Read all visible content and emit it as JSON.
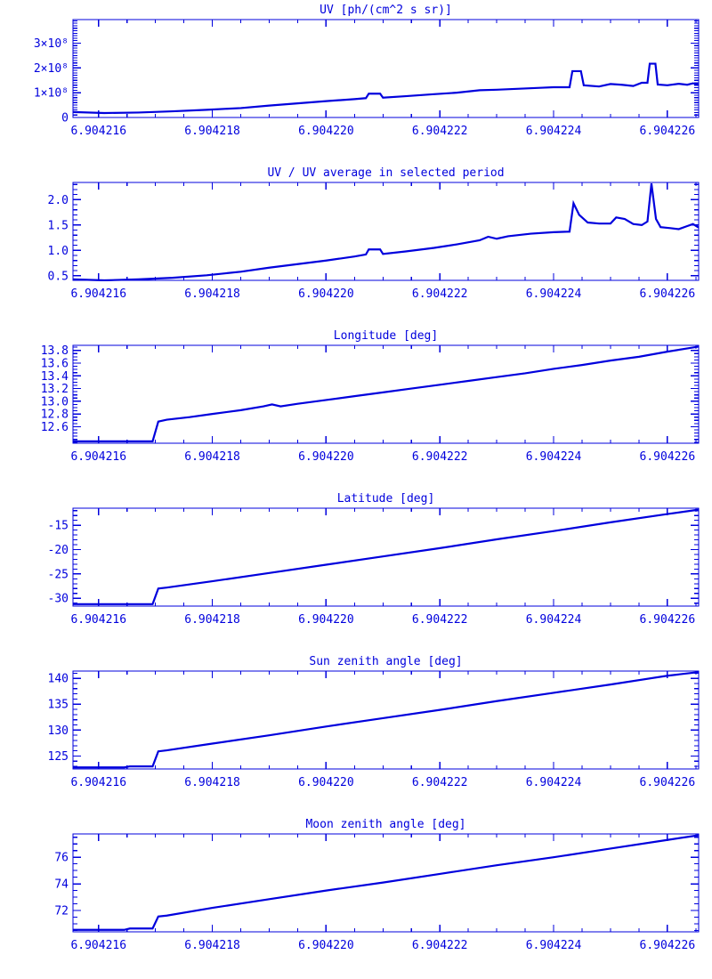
{
  "page": {
    "background": "#ffffff",
    "accent": "#0000dd"
  },
  "chart_data": [
    {
      "type": "line",
      "title": "UV [ph/(cm^2 s sr)]",
      "xlabel": "",
      "ylabel": "",
      "xlim": [
        6.90421555,
        6.90422655
      ],
      "ylim": [
        0,
        395000000.0
      ],
      "x_minor_step": 5e-07,
      "y_minor_step": 10000000.0,
      "x_ticks": {
        "values": [
          6.904216,
          6.904218,
          6.90422,
          6.904222,
          6.904224,
          6.904226
        ],
        "labels": [
          "6.904216",
          "6.904218",
          "6.904220",
          "6.904222",
          "6.904224",
          "6.904226"
        ]
      },
      "y_ticks": {
        "values": [
          0,
          100000000.0,
          200000000.0,
          300000000.0
        ],
        "labels": [
          "0",
          "1×10⁸",
          "2×10⁸",
          "3×10⁸"
        ]
      },
      "points": [
        [
          6.90421555,
          22000000.0
        ],
        [
          6.9042161,
          18000000.0
        ],
        [
          6.9042167,
          20000000.0
        ],
        [
          6.9042173,
          25000000.0
        ],
        [
          6.9042179,
          31000000.0
        ],
        [
          6.9042185,
          38000000.0
        ],
        [
          6.904219,
          48000000.0
        ],
        [
          6.9042195,
          57000000.0
        ],
        [
          6.90422,
          66000000.0
        ],
        [
          6.9042205,
          74000000.0
        ],
        [
          6.9042207,
          78000000.0
        ],
        [
          6.90422075,
          96000000.0
        ],
        [
          6.90422095,
          96000000.0
        ],
        [
          6.904221,
          80000000.0
        ],
        [
          6.9042214,
          86000000.0
        ],
        [
          6.9042219,
          94000000.0
        ],
        [
          6.9042223,
          100000000.0
        ],
        [
          6.9042227,
          110000000.0
        ],
        [
          6.904223,
          112000000.0
        ],
        [
          6.9042234,
          116000000.0
        ],
        [
          6.9042238,
          120000000.0
        ],
        [
          6.904224,
          122000000.0
        ],
        [
          6.90422428,
          122000000.0
        ],
        [
          6.90422433,
          187000000.0
        ],
        [
          6.90422448,
          187000000.0
        ],
        [
          6.90422453,
          130000000.0
        ],
        [
          6.9042248,
          125000000.0
        ],
        [
          6.904225,
          135000000.0
        ],
        [
          6.9042252,
          132000000.0
        ],
        [
          6.9042254,
          127000000.0
        ],
        [
          6.90422555,
          140000000.0
        ],
        [
          6.90422565,
          140000000.0
        ],
        [
          6.90422569,
          217000000.0
        ],
        [
          6.90422579,
          217000000.0
        ],
        [
          6.90422583,
          133000000.0
        ],
        [
          6.904226,
          130000000.0
        ],
        [
          6.9042262,
          136000000.0
        ],
        [
          6.90422635,
          132000000.0
        ],
        [
          6.90422645,
          138000000.0
        ],
        [
          6.90422655,
          133000000.0
        ]
      ]
    },
    {
      "type": "line",
      "title": "UV / UV average in selected period",
      "xlabel": "",
      "ylabel": "",
      "xlim": [
        6.90421555,
        6.90422655
      ],
      "ylim": [
        0.41,
        2.34
      ],
      "x_minor_step": 5e-07,
      "y_minor_step": 0.1,
      "x_ticks": {
        "values": [
          6.904216,
          6.904218,
          6.90422,
          6.904222,
          6.904224,
          6.904226
        ],
        "labels": [
          "6.904216",
          "6.904218",
          "6.904220",
          "6.904222",
          "6.904224",
          "6.904226"
        ]
      },
      "y_ticks": {
        "values": [
          0.5,
          1.0,
          1.5,
          2.0
        ],
        "labels": [
          "0.5",
          "1.0",
          "1.5",
          "2.0"
        ]
      },
      "points": [
        [
          6.90421555,
          0.43
        ],
        [
          6.9042161,
          0.41
        ],
        [
          6.9042167,
          0.43
        ],
        [
          6.9042173,
          0.46
        ],
        [
          6.9042179,
          0.51
        ],
        [
          6.9042185,
          0.58
        ],
        [
          6.904219,
          0.66
        ],
        [
          6.9042195,
          0.73
        ],
        [
          6.90422,
          0.8
        ],
        [
          6.9042205,
          0.88
        ],
        [
          6.9042207,
          0.92
        ],
        [
          6.90422075,
          1.02
        ],
        [
          6.90422095,
          1.02
        ],
        [
          6.904221,
          0.93
        ],
        [
          6.9042214,
          0.98
        ],
        [
          6.9042219,
          1.05
        ],
        [
          6.9042223,
          1.12
        ],
        [
          6.9042227,
          1.2
        ],
        [
          6.90422285,
          1.27
        ],
        [
          6.904223,
          1.23
        ],
        [
          6.9042232,
          1.28
        ],
        [
          6.9042236,
          1.33
        ],
        [
          6.904224,
          1.36
        ],
        [
          6.90422428,
          1.37
        ],
        [
          6.90422435,
          1.93
        ],
        [
          6.90422445,
          1.7
        ],
        [
          6.9042246,
          1.55
        ],
        [
          6.9042248,
          1.53
        ],
        [
          6.904225,
          1.53
        ],
        [
          6.9042251,
          1.65
        ],
        [
          6.90422525,
          1.62
        ],
        [
          6.9042254,
          1.52
        ],
        [
          6.90422555,
          1.5
        ],
        [
          6.90422565,
          1.57
        ],
        [
          6.90422572,
          2.32
        ],
        [
          6.9042258,
          1.62
        ],
        [
          6.90422588,
          1.46
        ],
        [
          6.90422605,
          1.44
        ],
        [
          6.9042262,
          1.42
        ],
        [
          6.90422635,
          1.48
        ],
        [
          6.90422645,
          1.52
        ],
        [
          6.90422655,
          1.45
        ]
      ]
    },
    {
      "type": "line",
      "title": "Longitude [deg]",
      "xlabel": "",
      "ylabel": "",
      "xlim": [
        6.90421555,
        6.90422655
      ],
      "ylim": [
        12.34,
        13.88
      ],
      "x_minor_step": 5e-07,
      "y_minor_step": 0.05,
      "x_ticks": {
        "values": [
          6.904216,
          6.904218,
          6.90422,
          6.904222,
          6.904224,
          6.904226
        ],
        "labels": [
          "6.904216",
          "6.904218",
          "6.904220",
          "6.904222",
          "6.904224",
          "6.904226"
        ]
      },
      "y_ticks": {
        "values": [
          12.6,
          12.8,
          13.0,
          13.2,
          13.4,
          13.6,
          13.8
        ],
        "labels": [
          "12.6",
          "12.8",
          "13.0",
          "13.2",
          "13.4",
          "13.6",
          "13.8"
        ]
      },
      "points": [
        [
          6.90421555,
          12.37
        ],
        [
          6.9042165,
          12.37
        ],
        [
          6.90421695,
          12.37
        ],
        [
          6.90421705,
          12.68
        ],
        [
          6.9042172,
          12.71
        ],
        [
          6.9042176,
          12.75
        ],
        [
          6.904218,
          12.8
        ],
        [
          6.9042185,
          12.86
        ],
        [
          6.9042189,
          12.92
        ],
        [
          6.90421905,
          12.95
        ],
        [
          6.9042192,
          12.92
        ],
        [
          6.9042195,
          12.96
        ],
        [
          6.90422,
          13.02
        ],
        [
          6.9042205,
          13.08
        ],
        [
          6.904221,
          13.14
        ],
        [
          6.9042215,
          13.2
        ],
        [
          6.904222,
          13.26
        ],
        [
          6.9042225,
          13.32
        ],
        [
          6.904223,
          13.38
        ],
        [
          6.9042235,
          13.44
        ],
        [
          6.904224,
          13.51
        ],
        [
          6.9042245,
          13.57
        ],
        [
          6.904225,
          13.64
        ],
        [
          6.9042255,
          13.7
        ],
        [
          6.904226,
          13.78
        ],
        [
          6.90422655,
          13.86
        ]
      ]
    },
    {
      "type": "line",
      "title": "Latitude [deg]",
      "xlabel": "",
      "ylabel": "",
      "xlim": [
        6.90421555,
        6.90422655
      ],
      "ylim": [
        -31.6,
        -11.5
      ],
      "x_minor_step": 5e-07,
      "y_minor_step": 1,
      "x_ticks": {
        "values": [
          6.904216,
          6.904218,
          6.90422,
          6.904222,
          6.904224,
          6.904226
        ],
        "labels": [
          "6.904216",
          "6.904218",
          "6.904220",
          "6.904222",
          "6.904224",
          "6.904226"
        ]
      },
      "y_ticks": {
        "values": [
          -30,
          -25,
          -20,
          -15
        ],
        "labels": [
          "-30",
          "-25",
          "-20",
          "-15"
        ]
      },
      "points": [
        [
          6.90421555,
          -31.2
        ],
        [
          6.9042165,
          -31.2
        ],
        [
          6.90421695,
          -31.2
        ],
        [
          6.90421705,
          -28.0
        ],
        [
          6.9042172,
          -27.8
        ],
        [
          6.904218,
          -26.5
        ],
        [
          6.904219,
          -24.8
        ],
        [
          6.90422,
          -23.1
        ],
        [
          6.904221,
          -21.4
        ],
        [
          6.904222,
          -19.7
        ],
        [
          6.904223,
          -17.9
        ],
        [
          6.904224,
          -16.2
        ],
        [
          6.904225,
          -14.4
        ],
        [
          6.904226,
          -12.7
        ],
        [
          6.90422655,
          -11.8
        ]
      ]
    },
    {
      "type": "line",
      "title": "Sun zenith angle [deg]",
      "xlabel": "",
      "ylabel": "",
      "xlim": [
        6.90421555,
        6.90422655
      ],
      "ylim": [
        122.5,
        141.4
      ],
      "x_minor_step": 5e-07,
      "y_minor_step": 1,
      "x_ticks": {
        "values": [
          6.904216,
          6.904218,
          6.90422,
          6.904222,
          6.904224,
          6.904226
        ],
        "labels": [
          "6.904216",
          "6.904218",
          "6.904220",
          "6.904222",
          "6.904224",
          "6.904226"
        ]
      },
      "y_ticks": {
        "values": [
          125,
          130,
          135,
          140
        ],
        "labels": [
          "125",
          "130",
          "135",
          "140"
        ]
      },
      "points": [
        [
          6.90421555,
          122.8
        ],
        [
          6.90421645,
          122.8
        ],
        [
          6.90421655,
          123.0
        ],
        [
          6.90421695,
          123.0
        ],
        [
          6.90421705,
          125.9
        ],
        [
          6.9042172,
          126.1
        ],
        [
          6.904218,
          127.4
        ],
        [
          6.904219,
          129.0
        ],
        [
          6.90422,
          130.7
        ],
        [
          6.904221,
          132.3
        ],
        [
          6.904222,
          133.9
        ],
        [
          6.904223,
          135.6
        ],
        [
          6.904224,
          137.2
        ],
        [
          6.904225,
          138.8
        ],
        [
          6.904226,
          140.5
        ],
        [
          6.90422655,
          141.2
        ]
      ]
    },
    {
      "type": "line",
      "title": "Moon zenith angle [deg]",
      "xlabel": "",
      "ylabel": "",
      "xlim": [
        6.90421555,
        6.90422655
      ],
      "ylim": [
        70.4,
        77.75
      ],
      "x_minor_step": 5e-07,
      "y_minor_step": 0.5,
      "x_ticks": {
        "values": [
          6.904216,
          6.904218,
          6.90422,
          6.904222,
          6.904224,
          6.904226
        ],
        "labels": [
          "6.904216",
          "6.904218",
          "6.904220",
          "6.904222",
          "6.904224",
          "6.904226"
        ]
      },
      "y_ticks": {
        "values": [
          72,
          74,
          76
        ],
        "labels": [
          "72",
          "74",
          "76"
        ]
      },
      "points": [
        [
          6.90421555,
          70.55
        ],
        [
          6.90421645,
          70.55
        ],
        [
          6.90421655,
          70.65
        ],
        [
          6.90421695,
          70.65
        ],
        [
          6.90421705,
          71.55
        ],
        [
          6.9042172,
          71.62
        ],
        [
          6.904218,
          72.2
        ],
        [
          6.904219,
          72.85
        ],
        [
          6.90422,
          73.5
        ],
        [
          6.904221,
          74.1
        ],
        [
          6.904222,
          74.75
        ],
        [
          6.904223,
          75.4
        ],
        [
          6.904224,
          76.0
        ],
        [
          6.904225,
          76.65
        ],
        [
          6.904226,
          77.3
        ],
        [
          6.90422655,
          77.65
        ]
      ]
    }
  ]
}
